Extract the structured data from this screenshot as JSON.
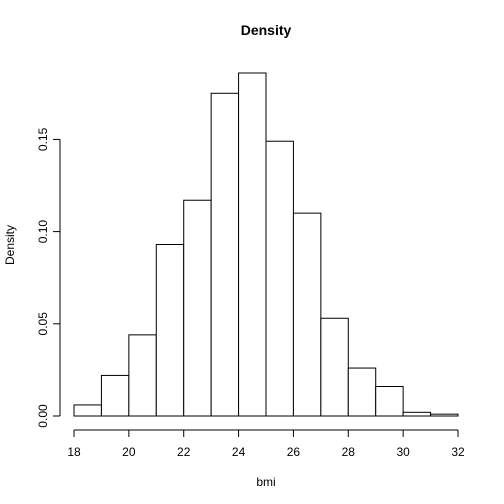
{
  "chart_data": {
    "type": "bar",
    "title": "Density",
    "xlabel": "bmi",
    "ylabel": "Density",
    "bins": [
      {
        "x0": 18,
        "x1": 19,
        "y": 0.006
      },
      {
        "x0": 19,
        "x1": 20,
        "y": 0.022
      },
      {
        "x0": 20,
        "x1": 21,
        "y": 0.044
      },
      {
        "x0": 21,
        "x1": 22,
        "y": 0.093
      },
      {
        "x0": 22,
        "x1": 23,
        "y": 0.117
      },
      {
        "x0": 23,
        "x1": 24,
        "y": 0.175
      },
      {
        "x0": 24,
        "x1": 25,
        "y": 0.186
      },
      {
        "x0": 25,
        "x1": 26,
        "y": 0.149
      },
      {
        "x0": 26,
        "x1": 27,
        "y": 0.11
      },
      {
        "x0": 27,
        "x1": 28,
        "y": 0.053
      },
      {
        "x0": 28,
        "x1": 29,
        "y": 0.026
      },
      {
        "x0": 29,
        "x1": 30,
        "y": 0.016
      },
      {
        "x0": 30,
        "x1": 31,
        "y": 0.002
      },
      {
        "x0": 31,
        "x1": 32,
        "y": 0.001
      }
    ],
    "xticks": [
      18,
      20,
      22,
      24,
      26,
      28,
      30,
      32
    ],
    "xtick_labels": [
      "18",
      "20",
      "22",
      "24",
      "26",
      "28",
      "30",
      "32"
    ],
    "yticks": [
      0,
      0.05,
      0.1,
      0.15
    ],
    "ytick_labels": [
      "0.00",
      "0.05",
      "0.10",
      "0.15"
    ],
    "xlim": [
      18,
      32
    ],
    "ylim": [
      0,
      0.186
    ],
    "grid": false,
    "bar_fill": "#ffffff",
    "bar_stroke": "#000000"
  }
}
